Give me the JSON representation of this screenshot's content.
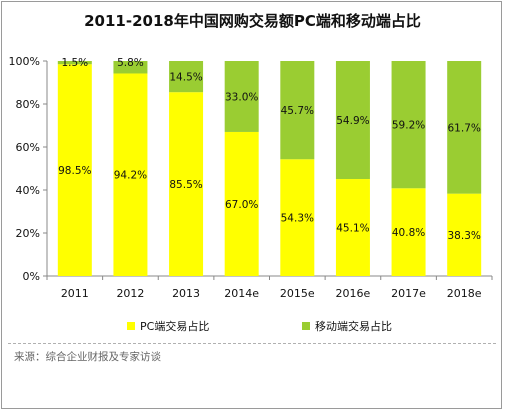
{
  "chart_data": {
    "type": "bar",
    "stacked": true,
    "title": "2011-2018年中国网购交易额PC端和移动端占比",
    "categories": [
      "2011",
      "2012",
      "2013",
      "2014e",
      "2015e",
      "2016e",
      "2017e",
      "2018e"
    ],
    "series": [
      {
        "name": "PC端交易占比",
        "color": "#ffff00",
        "values": [
          98.5,
          94.2,
          85.5,
          67.0,
          54.3,
          45.1,
          40.8,
          38.3
        ],
        "labels": [
          "98.5%",
          "94.2%",
          "85.5%",
          "67.0%",
          "54.3%",
          "45.1%",
          "40.8%",
          "38.3%"
        ]
      },
      {
        "name": "移动端交易占比",
        "color": "#9acd32",
        "values": [
          1.5,
          5.8,
          14.5,
          33.0,
          45.7,
          54.9,
          59.2,
          61.7
        ],
        "labels": [
          "1.5%",
          "5.8%",
          "14.5%",
          "33.0%",
          "45.7%",
          "54.9%",
          "59.2%",
          "61.7%"
        ]
      }
    ],
    "yticks": [
      "0%",
      "20%",
      "40%",
      "60%",
      "80%",
      "100%"
    ],
    "ylim": [
      0,
      100
    ],
    "grid": false,
    "legend_position": "bottom"
  },
  "source": "来源：综合企业财报及专家访谈"
}
